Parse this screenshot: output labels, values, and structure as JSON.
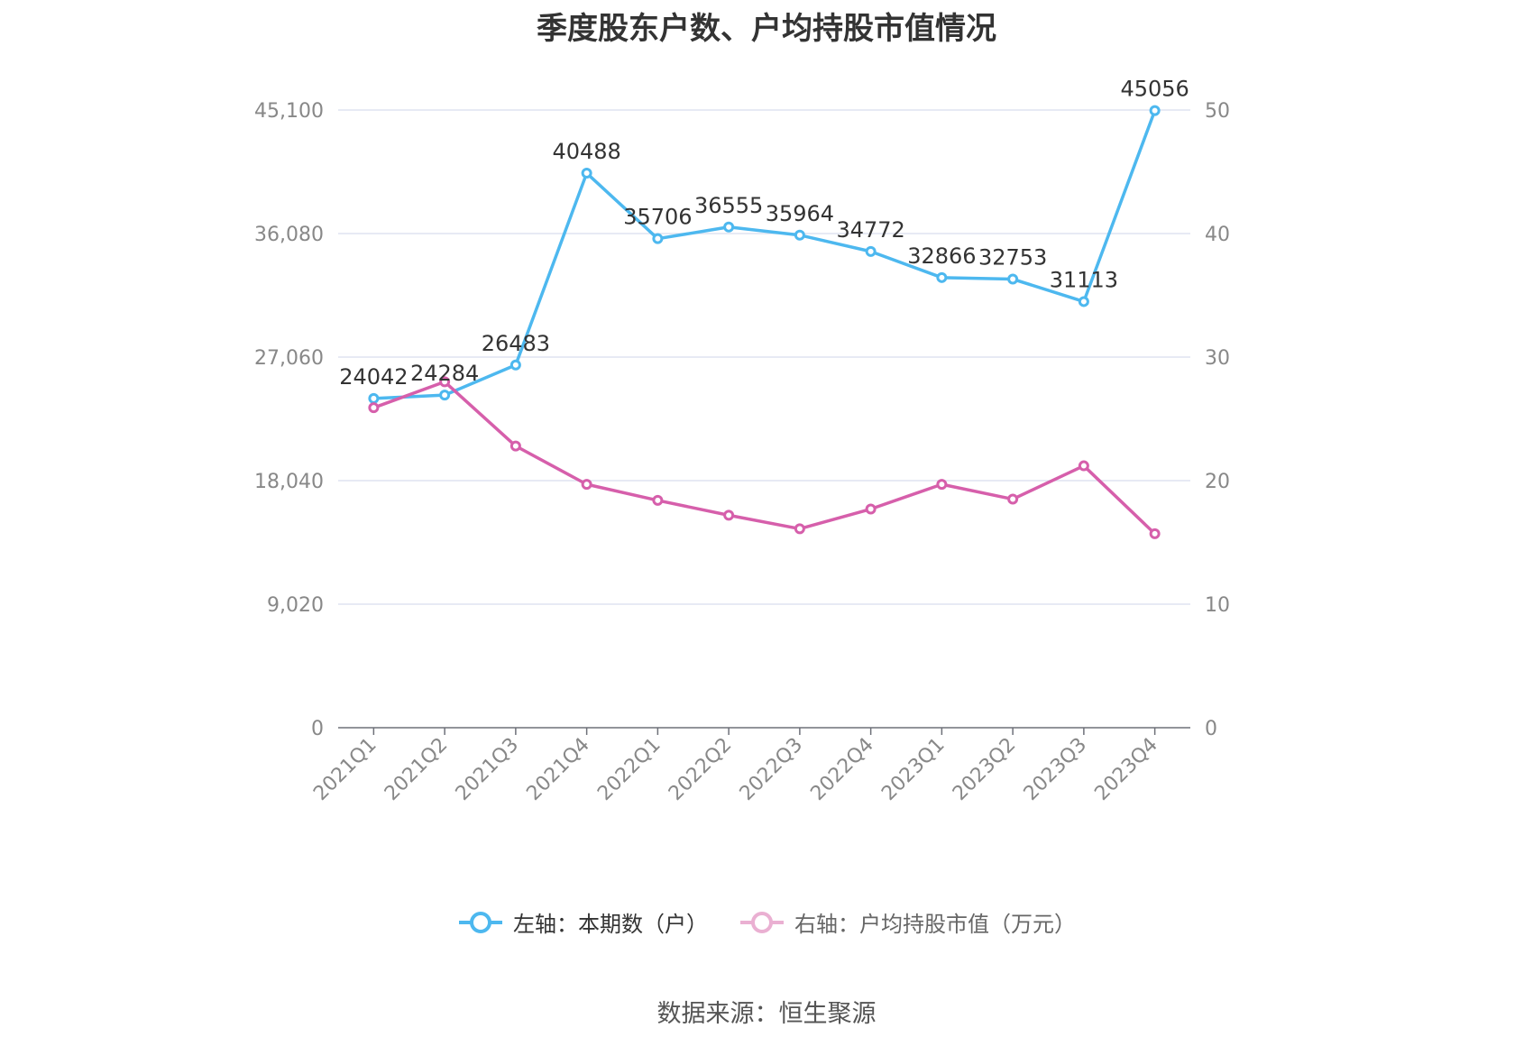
{
  "chart_data": {
    "type": "line",
    "title": "季度股东户数、户均持股市值情况",
    "categories": [
      "2021Q1",
      "2021Q2",
      "2021Q3",
      "2021Q4",
      "2022Q1",
      "2022Q2",
      "2022Q3",
      "2022Q4",
      "2023Q1",
      "2023Q2",
      "2023Q3",
      "2023Q4"
    ],
    "left_axis": {
      "ylim": [
        0,
        45100
      ],
      "ticks": [
        "0",
        "9,020",
        "18,040",
        "27,060",
        "36,080",
        "45,100"
      ]
    },
    "right_axis": {
      "ylim": [
        0,
        50
      ],
      "ticks": [
        "0",
        "10",
        "20",
        "30",
        "40",
        "50"
      ]
    },
    "grid": true,
    "legend_position": "bottom",
    "series": [
      {
        "name": "左轴：本期数（户）",
        "axis": "left",
        "color": "#4db8ef",
        "values": [
          24042,
          24284,
          26483,
          40488,
          35706,
          36555,
          35964,
          34772,
          32866,
          32753,
          31113,
          45056
        ],
        "labels": [
          "24042",
          "24284",
          "26483",
          "40488",
          "35706",
          "36555",
          "35964",
          "34772",
          "32866",
          "32753",
          "31113",
          "45056"
        ]
      },
      {
        "name": "右轴：户均持股市值（万元）",
        "axis": "right",
        "color": "#d65fab",
        "values": [
          25.9,
          28.0,
          22.8,
          19.7,
          18.4,
          17.2,
          16.1,
          17.7,
          19.7,
          18.5,
          21.2,
          15.7
        ]
      }
    ]
  },
  "source": "数据来源：恒生聚源"
}
